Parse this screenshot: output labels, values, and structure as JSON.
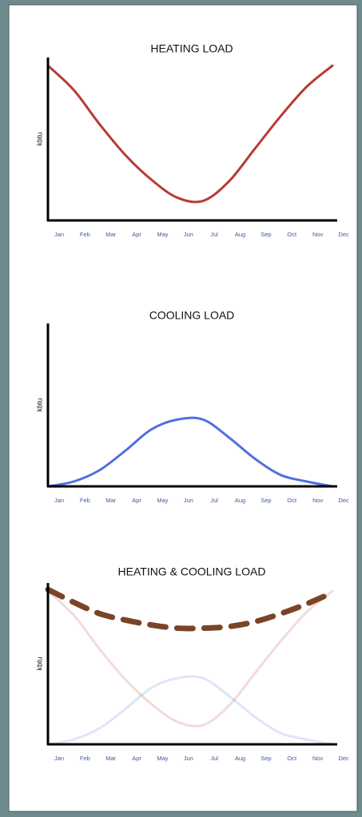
{
  "chart_data": [
    {
      "type": "line",
      "title": "HEATING LOAD",
      "y_label": "kbtu",
      "categories": [
        "Jan",
        "Feb",
        "Mar",
        "Apr",
        "May",
        "Jun",
        "Jul",
        "Aug",
        "Sep",
        "Oct",
        "Nov",
        "Dec"
      ],
      "ylim": [
        0,
        100
      ],
      "series": [
        {
          "color": "#b83a33",
          "opacity": 1,
          "width": 3,
          "dashed": false,
          "values": [
            95,
            80,
            59,
            40,
            25,
            14,
            12,
            24,
            44,
            64,
            82,
            95
          ]
        }
      ]
    },
    {
      "type": "line",
      "title": "COOLING LOAD",
      "y_label": "kbtu",
      "categories": [
        "Jan",
        "Feb",
        "Mar",
        "Apr",
        "May",
        "Jun",
        "Jul",
        "Aug",
        "Sep",
        "Oct",
        "Nov",
        "Dec"
      ],
      "ylim": [
        0,
        100
      ],
      "series": [
        {
          "color": "#4f6fe0",
          "opacity": 1,
          "width": 3,
          "dashed": false,
          "values": [
            0,
            3,
            10,
            22,
            35,
            41,
            41,
            30,
            17,
            7,
            3,
            0
          ]
        }
      ]
    },
    {
      "type": "line",
      "title": "HEATING & COOLING LOAD",
      "y_label": "kbtu",
      "categories": [
        "Jan",
        "Feb",
        "Mar",
        "Apr",
        "May",
        "Jun",
        "Jul",
        "Aug",
        "Sep",
        "Oct",
        "Nov",
        "Dec"
      ],
      "ylim": [
        0,
        100
      ],
      "series": [
        {
          "color": "#b83a33",
          "opacity": 0.18,
          "width": 3,
          "dashed": false,
          "values": [
            95,
            80,
            59,
            40,
            25,
            14,
            12,
            24,
            44,
            64,
            82,
            95
          ]
        },
        {
          "color": "#4f6fe0",
          "opacity": 0.18,
          "width": 3,
          "dashed": false,
          "values": [
            0,
            3,
            10,
            22,
            35,
            41,
            41,
            30,
            17,
            7,
            3,
            0
          ]
        },
        {
          "color": "#7a4526",
          "opacity": 1,
          "width": 7,
          "dashed": true,
          "values": [
            96,
            88,
            81,
            77,
            74,
            72,
            72,
            73,
            76,
            81,
            87,
            94
          ]
        }
      ]
    }
  ]
}
